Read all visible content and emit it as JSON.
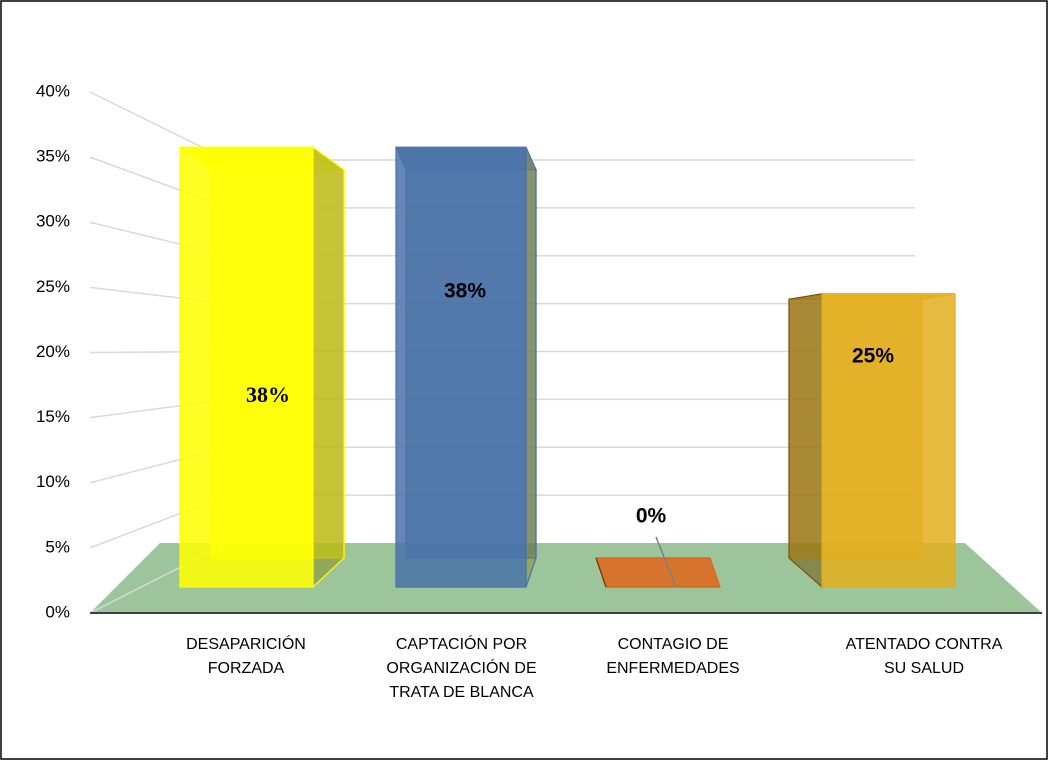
{
  "chart_data": {
    "type": "bar3d",
    "categories": [
      "DESAPARICIÓN FORZADA",
      "CAPTACIÓN POR ORGANIZACIÓN DE TRATA DE BLANCA",
      "CONTAGIO DE ENFERMEDADES",
      "ATENTADO CONTRA SU SALUD"
    ],
    "values": [
      37.5,
      37.5,
      0,
      25
    ],
    "value_labels": [
      "38%",
      "38%",
      "0%",
      "25%"
    ],
    "colors": [
      "#ffff00",
      "#4a72a8",
      "#e0651a",
      "#e3ae1f"
    ],
    "ylim": [
      0,
      40
    ],
    "yticks": [
      {
        "value": 0,
        "label": "0%"
      },
      {
        "value": 5,
        "label": "5%"
      },
      {
        "value": 10,
        "label": "10%"
      },
      {
        "value": 15,
        "label": "15%"
      },
      {
        "value": 20,
        "label": "20%"
      },
      {
        "value": 25,
        "label": "25%"
      },
      {
        "value": 30,
        "label": "30%"
      },
      {
        "value": 35,
        "label": "35%"
      },
      {
        "value": 40,
        "label": "40%"
      }
    ],
    "grid": true
  }
}
